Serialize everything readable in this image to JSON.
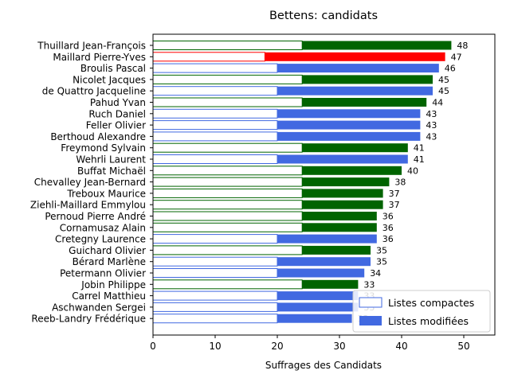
{
  "chart_data": {
    "type": "bar",
    "orientation": "horizontal",
    "title": "Bettens: candidats",
    "xlabel": "Suffrages des Candidats",
    "ylabel": "",
    "xlim": [
      0,
      55
    ],
    "xticks": [
      0,
      10,
      20,
      30,
      40,
      50
    ],
    "grid": false,
    "legend_position": "lower-right",
    "categories": [
      "Thuillard Jean-François",
      "Maillard Pierre-Yves",
      "Broulis Pascal",
      "Nicolet Jacques",
      "de Quattro Jacqueline",
      "Pahud Yvan",
      "Ruch Daniel",
      "Feller Olivier",
      "Berthoud Alexandre",
      "Freymond Sylvain",
      "Wehrli Laurent",
      "Buffat Michaël",
      "Chevalley Jean-Bernard",
      "Treboux Maurice",
      "Ziehli-Maillard Emmylou",
      "Pernoud Pierre André",
      "Cornamusaz Alain",
      "Cretegny Laurence",
      "Guichard Olivier",
      "Bérard Marlène",
      "Petermann Olivier",
      "Jobin Philippe",
      "Carrel Matthieu",
      "Aschwanden Sergei",
      "Reeb-Landry Frédérique"
    ],
    "series": [
      {
        "name": "Listes compactes",
        "values": [
          24,
          18,
          20,
          24,
          20,
          24,
          20,
          20,
          20,
          24,
          20,
          24,
          24,
          24,
          24,
          24,
          24,
          20,
          24,
          20,
          20,
          24,
          20,
          20,
          20
        ]
      },
      {
        "name": "Listes modifiées",
        "values": [
          24,
          29,
          26,
          21,
          25,
          20,
          23,
          23,
          23,
          17,
          21,
          16,
          14,
          13,
          13,
          12,
          12,
          16,
          11,
          15,
          14,
          9,
          13,
          13,
          12
        ]
      }
    ],
    "totals": [
      48,
      47,
      46,
      45,
      45,
      44,
      43,
      43,
      43,
      41,
      41,
      40,
      38,
      37,
      37,
      36,
      36,
      36,
      35,
      35,
      34,
      33,
      33,
      33,
      32
    ],
    "total_labels": [
      "48",
      "47",
      "46",
      "45",
      "45",
      "44",
      "43",
      "43",
      "43",
      "41",
      "41",
      "40",
      "38",
      "37",
      "37",
      "36",
      "36",
      "36",
      "35",
      "35",
      "34",
      "33",
      "33",
      "33",
      "32"
    ],
    "bar_colors": [
      "#006400",
      "#ff0000",
      "#4169e1",
      "#006400",
      "#4169e1",
      "#006400",
      "#4169e1",
      "#4169e1",
      "#4169e1",
      "#006400",
      "#4169e1",
      "#006400",
      "#006400",
      "#006400",
      "#006400",
      "#006400",
      "#006400",
      "#4169e1",
      "#006400",
      "#4169e1",
      "#4169e1",
      "#006400",
      "#4169e1",
      "#4169e1",
      "#4169e1"
    ],
    "legend_colors": {
      "compact_edge": "#4169e1",
      "modified_fill": "#4169e1"
    }
  }
}
